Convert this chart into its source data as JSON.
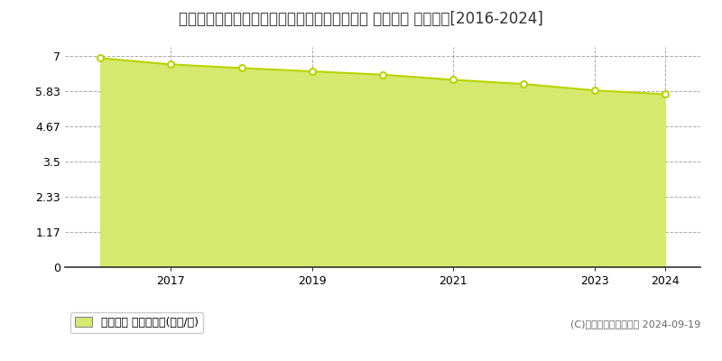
{
  "title": "栃木県栃木市西方町金崎字木ノ下２８８番１外 公示地価 地価推移[2016-2024]",
  "years": [
    2016,
    2017,
    2018,
    2019,
    2020,
    2021,
    2022,
    2023,
    2024
  ],
  "values": [
    6.93,
    6.72,
    6.6,
    6.49,
    6.38,
    6.21,
    6.07,
    5.86,
    5.73
  ],
  "yticks": [
    0,
    1.17,
    2.33,
    3.5,
    4.67,
    5.83,
    7
  ],
  "ytick_labels": [
    "0",
    "1.17",
    "2.33",
    "3.5",
    "4.67",
    "5.83",
    "7"
  ],
  "fill_color": "#d4e96e",
  "line_color": "#b8d400",
  "marker_color": "#ffffff",
  "marker_edge_color": "#b8d400",
  "grid_color": "#aaaaaa",
  "background_color": "#ffffff",
  "plot_bg_color": "#ffffff",
  "legend_label": "公示地価 平均坪単価(万円/坪)",
  "legend_marker_color": "#d4e96e",
  "copyright_text": "(C)土地価格ドットコム 2024-09-19",
  "xlim_left": 2015.5,
  "xlim_right": 2024.5,
  "ylim_bottom": 0,
  "ylim_top": 7.3,
  "title_fontsize": 12,
  "tick_fontsize": 9,
  "legend_fontsize": 9,
  "copyright_fontsize": 8,
  "xticks": [
    2017,
    2019,
    2021,
    2023,
    2024
  ]
}
